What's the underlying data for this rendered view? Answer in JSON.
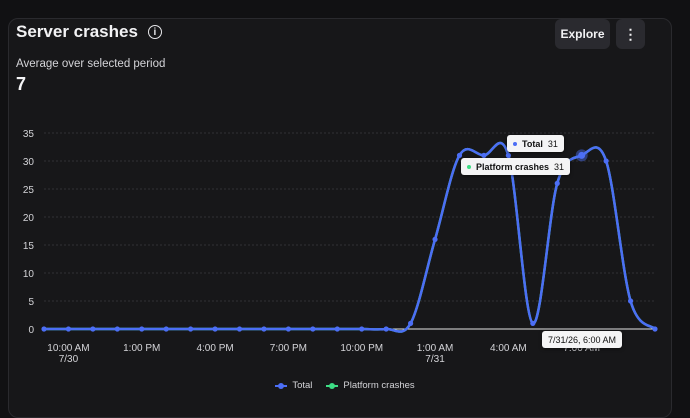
{
  "card": {
    "title": "Server crashes",
    "subtitle": "Average over selected period",
    "average": "7",
    "explore_label": "Explore",
    "more_label": "⋮"
  },
  "tooltip": {
    "total_label": "Total",
    "total_value": "31",
    "platform_label": "Platform crashes",
    "platform_value": "31",
    "time_label": "7/31/26, 6:00 AM"
  },
  "colors": {
    "total": "#4c6ef5",
    "platform": "#3ddc84"
  },
  "chart_data": {
    "type": "line",
    "ylim": [
      0,
      35
    ],
    "y_ticks": [
      0,
      5,
      10,
      15,
      20,
      25,
      30,
      35
    ],
    "x_tick_labels": [
      {
        "line1": "10:00 AM",
        "line2": "7/30"
      },
      {
        "line1": "1:00 PM",
        "line2": ""
      },
      {
        "line1": "4:00 PM",
        "line2": ""
      },
      {
        "line1": "7:00 PM",
        "line2": ""
      },
      {
        "line1": "10:00 PM",
        "line2": ""
      },
      {
        "line1": "1:00 AM",
        "line2": "7/31"
      },
      {
        "line1": "4:00 AM",
        "line2": ""
      },
      {
        "line1": "7:00 AM",
        "line2": ""
      }
    ],
    "series": [
      {
        "name": "Total",
        "values": [
          0,
          0,
          0,
          0,
          0,
          0,
          0,
          0,
          0,
          0,
          0,
          0,
          0,
          0,
          0,
          1,
          16,
          31,
          31,
          31,
          1,
          26,
          31,
          30,
          5,
          0
        ]
      },
      {
        "name": "Platform crashes",
        "values": [
          0,
          0,
          0,
          0,
          0,
          0,
          0,
          0,
          0,
          0,
          0,
          0,
          0,
          0,
          0,
          1,
          16,
          31,
          31,
          31,
          1,
          26,
          31,
          30,
          5,
          0
        ]
      }
    ],
    "legend": [
      "Total",
      "Platform crashes"
    ],
    "legend_position": "bottom"
  }
}
